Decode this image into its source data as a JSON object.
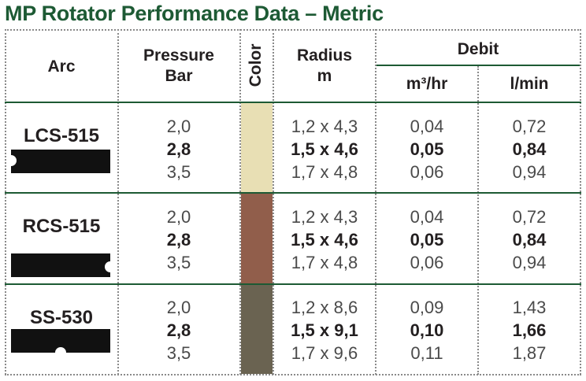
{
  "title": "MP Rotator Performance Data – Metric",
  "headers": {
    "arc": "Arc",
    "pressure": [
      "Pressure",
      "Bar"
    ],
    "color": "Color",
    "radius": [
      "Radius",
      "m"
    ],
    "debit": "Debit",
    "m3hr": "m³/hr",
    "lmin": "l/min"
  },
  "colors": {
    "heading_green": "#1d5a34",
    "grid": "#8a8a8a"
  },
  "rows": [
    {
      "arc": "LCS-515",
      "icon": "left-corner-strip-shape",
      "swatch": "#e8dfb4",
      "pressure": [
        "2,0",
        "2,8",
        "3,5"
      ],
      "radius": [
        "1,2 x 4,3",
        "1,5 x 4,6",
        "1,7 x 4,8"
      ],
      "m3hr": [
        "0,04",
        "0,05",
        "0,06"
      ],
      "lmin": [
        "0,72",
        "0,84",
        "0,94"
      ]
    },
    {
      "arc": "RCS-515",
      "icon": "right-corner-strip-shape",
      "swatch": "#915e4b",
      "pressure": [
        "2,0",
        "2,8",
        "3,5"
      ],
      "radius": [
        "1,2 x 4,3",
        "1,5 x 4,6",
        "1,7 x 4,8"
      ],
      "m3hr": [
        "0,04",
        "0,05",
        "0,06"
      ],
      "lmin": [
        "0,72",
        "0,84",
        "0,94"
      ]
    },
    {
      "arc": "SS-530",
      "icon": "side-strip-shape",
      "swatch": "#6a6351",
      "pressure": [
        "2,0",
        "2,8",
        "3,5"
      ],
      "radius": [
        "1,2 x 8,6",
        "1,5 x 9,1",
        "1,7 x 9,6"
      ],
      "m3hr": [
        "0,09",
        "0,10",
        "0,11"
      ],
      "lmin": [
        "1,43",
        "1,66",
        "1,87"
      ]
    }
  ]
}
